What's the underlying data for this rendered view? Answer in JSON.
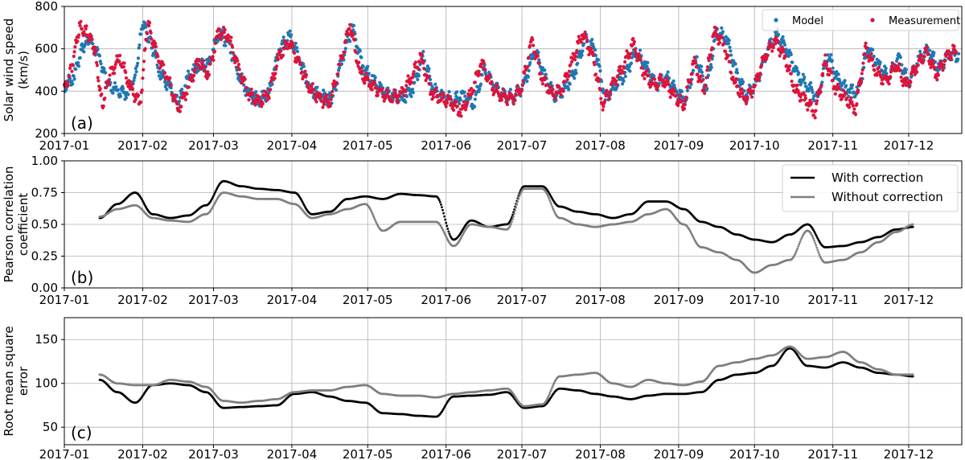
{
  "chart_data": [
    {
      "panel": "(a)",
      "type": "scatter",
      "ylabel": "Solar wind speed\n(km/s)",
      "ylim": [
        200,
        800
      ],
      "yticks": [
        200,
        400,
        600,
        800
      ],
      "xlim": [
        "2017-01-01",
        "2017-12-22"
      ],
      "xticks": [
        "2017-01",
        "2017-02",
        "2017-03",
        "2017-04",
        "2017-05",
        "2017-06",
        "2017-07",
        "2017-08",
        "2017-09",
        "2017-10",
        "2017-11",
        "2017-12"
      ],
      "grid": true,
      "legend": {
        "placement": "top-right",
        "entries": [
          "Model",
          "Measurement"
        ]
      },
      "series": [
        {
          "name": "Model",
          "color": "#1f77b4",
          "x": [
            "2017-01-01",
            "2017-01-05",
            "2017-01-08",
            "2017-01-11",
            "2017-01-15",
            "2017-01-18",
            "2017-01-22",
            "2017-01-26",
            "2017-01-29",
            "2017-02-01",
            "2017-02-04",
            "2017-02-08",
            "2017-02-12",
            "2017-02-15",
            "2017-02-19",
            "2017-02-23",
            "2017-02-27",
            "2017-03-03",
            "2017-03-07",
            "2017-03-11",
            "2017-03-15",
            "2017-03-19",
            "2017-03-23",
            "2017-03-27",
            "2017-03-31",
            "2017-04-04",
            "2017-04-08",
            "2017-04-12",
            "2017-04-17",
            "2017-04-21",
            "2017-04-25",
            "2017-04-29",
            "2017-05-03",
            "2017-05-07",
            "2017-05-11",
            "2017-05-15",
            "2017-05-19",
            "2017-05-23",
            "2017-05-27",
            "2017-05-31",
            "2017-06-04",
            "2017-06-08",
            "2017-06-12",
            "2017-06-16",
            "2017-06-20",
            "2017-06-24",
            "2017-06-28",
            "2017-07-02",
            "2017-07-06",
            "2017-07-10",
            "2017-07-14",
            "2017-07-18",
            "2017-07-22",
            "2017-07-26",
            "2017-07-30",
            "2017-08-03",
            "2017-08-07",
            "2017-08-11",
            "2017-08-15",
            "2017-08-19",
            "2017-08-23",
            "2017-08-27",
            "2017-08-31",
            "2017-09-04",
            "2017-09-08",
            "2017-09-12",
            "2017-09-16",
            "2017-09-20",
            "2017-09-24",
            "2017-09-28",
            "2017-10-02",
            "2017-10-06",
            "2017-10-10",
            "2017-10-14",
            "2017-10-18",
            "2017-10-22",
            "2017-10-26",
            "2017-10-30",
            "2017-11-03",
            "2017-11-07",
            "2017-11-11",
            "2017-11-15",
            "2017-11-19",
            "2017-11-23",
            "2017-11-27",
            "2017-12-01",
            "2017-12-05",
            "2017-12-09",
            "2017-12-13",
            "2017-12-17",
            "2017-12-21"
          ],
          "values": [
            420,
            470,
            610,
            640,
            560,
            430,
            400,
            390,
            470,
            720,
            640,
            480,
            410,
            340,
            460,
            530,
            520,
            680,
            620,
            480,
            380,
            360,
            390,
            600,
            660,
            560,
            410,
            380,
            360,
            560,
            700,
            520,
            450,
            400,
            380,
            360,
            420,
            560,
            410,
            370,
            360,
            380,
            340,
            500,
            430,
            370,
            380,
            430,
            600,
            470,
            380,
            400,
            500,
            640,
            600,
            360,
            430,
            480,
            590,
            520,
            430,
            470,
            400,
            360,
            560,
            410,
            680,
            650,
            480,
            380,
            440,
            600,
            660,
            600,
            470,
            430,
            360,
            580,
            450,
            410,
            390,
            610,
            520,
            470,
            560,
            440,
            550,
            600,
            500,
            580,
            560
          ]
        },
        {
          "name": "Measurement",
          "color": "#dc143c",
          "x": [
            "2017-01-01",
            "2017-01-04",
            "2017-01-07",
            "2017-01-10",
            "2017-01-13",
            "2017-01-16",
            "2017-01-19",
            "2017-01-23",
            "2017-01-27",
            "2017-01-31",
            "2017-02-03",
            "2017-02-07",
            "2017-02-11",
            "2017-02-15",
            "2017-02-19",
            "2017-02-23",
            "2017-02-27",
            "2017-03-03",
            "2017-03-07",
            "2017-03-11",
            "2017-03-15",
            "2017-03-19",
            "2017-03-23",
            "2017-03-27",
            "2017-03-31",
            "2017-04-04",
            "2017-04-08",
            "2017-04-12",
            "2017-04-16",
            "2017-04-20",
            "2017-04-24",
            "2017-04-28",
            "2017-05-02",
            "2017-05-06",
            "2017-05-10",
            "2017-05-14",
            "2017-05-18",
            "2017-05-22",
            "2017-05-26",
            "2017-05-30",
            "2017-06-03",
            "2017-06-07",
            "2017-06-11",
            "2017-06-15",
            "2017-06-19",
            "2017-06-23",
            "2017-06-27",
            "2017-07-01",
            "2017-07-05",
            "2017-07-09",
            "2017-07-13",
            "2017-07-17",
            "2017-07-21",
            "2017-07-25",
            "2017-07-29",
            "2017-08-02",
            "2017-08-06",
            "2017-08-10",
            "2017-08-14",
            "2017-08-18",
            "2017-08-22",
            "2017-08-26",
            "2017-08-30",
            "2017-09-03",
            "2017-09-07",
            "2017-09-11",
            "2017-09-15",
            "2017-09-19",
            "2017-09-23",
            "2017-09-27",
            "2017-10-01",
            "2017-10-05",
            "2017-10-09",
            "2017-10-13",
            "2017-10-17",
            "2017-10-21",
            "2017-10-25",
            "2017-10-29",
            "2017-11-02",
            "2017-11-06",
            "2017-11-10",
            "2017-11-14",
            "2017-11-18",
            "2017-11-22",
            "2017-11-26",
            "2017-11-30",
            "2017-12-04",
            "2017-12-08",
            "2017-12-12",
            "2017-12-16",
            "2017-12-20"
          ],
          "values": [
            400,
            520,
            700,
            680,
            600,
            330,
            480,
            560,
            420,
            340,
            720,
            560,
            460,
            310,
            420,
            540,
            480,
            680,
            660,
            500,
            390,
            340,
            400,
            560,
            640,
            520,
            420,
            360,
            350,
            520,
            720,
            480,
            440,
            390,
            370,
            380,
            460,
            560,
            400,
            360,
            350,
            300,
            390,
            540,
            420,
            380,
            360,
            420,
            640,
            460,
            380,
            420,
            540,
            680,
            560,
            340,
            430,
            520,
            620,
            500,
            420,
            460,
            380,
            330,
            540,
            400,
            680,
            620,
            440,
            360,
            420,
            560,
            640,
            560,
            410,
            360,
            300,
            540,
            420,
            360,
            320,
            600,
            500,
            440,
            530,
            420,
            520,
            580,
            480,
            560,
            600
          ]
        }
      ]
    },
    {
      "panel": "(b)",
      "type": "line",
      "ylabel": "Pearson correlation\ncoefficient",
      "ylim": [
        0.0,
        1.0
      ],
      "yticks": [
        "0.00",
        "0.25",
        "0.50",
        "0.75",
        "1.00"
      ],
      "xlim": [
        "2017-01-01",
        "2017-12-22"
      ],
      "xticks": [
        "2017-01",
        "2017-02",
        "2017-03",
        "2017-04",
        "2017-05",
        "2017-06",
        "2017-07",
        "2017-08",
        "2017-09",
        "2017-10",
        "2017-11",
        "2017-12"
      ],
      "grid": true,
      "legend": {
        "placement": "top-right",
        "entries": [
          "With correction",
          "Without correction"
        ]
      },
      "x": [
        "2017-01-15",
        "2017-01-22",
        "2017-01-29",
        "2017-02-05",
        "2017-02-12",
        "2017-02-19",
        "2017-02-26",
        "2017-03-05",
        "2017-03-12",
        "2017-03-19",
        "2017-03-26",
        "2017-04-02",
        "2017-04-09",
        "2017-04-16",
        "2017-04-23",
        "2017-04-30",
        "2017-05-07",
        "2017-05-14",
        "2017-05-21",
        "2017-05-28",
        "2017-06-04",
        "2017-06-11",
        "2017-06-18",
        "2017-06-25",
        "2017-07-02",
        "2017-07-09",
        "2017-07-16",
        "2017-07-23",
        "2017-07-30",
        "2017-08-06",
        "2017-08-13",
        "2017-08-20",
        "2017-08-27",
        "2017-09-03",
        "2017-09-10",
        "2017-09-17",
        "2017-09-24",
        "2017-10-01",
        "2017-10-08",
        "2017-10-15",
        "2017-10-22",
        "2017-10-29",
        "2017-11-05",
        "2017-11-12",
        "2017-11-19",
        "2017-11-26",
        "2017-12-03"
      ],
      "series": [
        {
          "name": "With correction",
          "color": "#000000",
          "values": [
            0.55,
            0.66,
            0.75,
            0.58,
            0.55,
            0.57,
            0.65,
            0.84,
            0.8,
            0.78,
            0.77,
            0.75,
            0.58,
            0.6,
            0.7,
            0.72,
            0.7,
            0.74,
            0.73,
            0.72,
            0.38,
            0.53,
            0.48,
            0.5,
            0.8,
            0.8,
            0.64,
            0.6,
            0.58,
            0.55,
            0.58,
            0.68,
            0.68,
            0.62,
            0.52,
            0.48,
            0.42,
            0.38,
            0.36,
            0.42,
            0.5,
            0.32,
            0.33,
            0.36,
            0.4,
            0.46,
            0.48
          ]
        },
        {
          "name": "Without correction",
          "color": "#7f7f7f",
          "values": [
            0.56,
            0.62,
            0.65,
            0.55,
            0.53,
            0.52,
            0.58,
            0.75,
            0.72,
            0.7,
            0.7,
            0.66,
            0.55,
            0.58,
            0.62,
            0.66,
            0.45,
            0.52,
            0.52,
            0.52,
            0.33,
            0.5,
            0.48,
            0.46,
            0.78,
            0.78,
            0.55,
            0.5,
            0.48,
            0.5,
            0.52,
            0.58,
            0.62,
            0.5,
            0.32,
            0.28,
            0.22,
            0.12,
            0.18,
            0.22,
            0.45,
            0.2,
            0.22,
            0.28,
            0.36,
            0.44,
            0.5
          ]
        }
      ]
    },
    {
      "panel": "(c)",
      "type": "line",
      "ylabel": "Root mean square\nerror",
      "ylim": [
        30,
        175
      ],
      "yticks": [
        50,
        100,
        150
      ],
      "xlim": [
        "2017-01-01",
        "2017-12-22"
      ],
      "xticks": [
        "2017-01",
        "2017-02",
        "2017-03",
        "2017-04",
        "2017-05",
        "2017-06",
        "2017-07",
        "2017-08",
        "2017-09",
        "2017-10",
        "2017-11",
        "2017-12"
      ],
      "grid": true,
      "x": [
        "2017-01-15",
        "2017-01-22",
        "2017-01-29",
        "2017-02-05",
        "2017-02-12",
        "2017-02-19",
        "2017-02-26",
        "2017-03-05",
        "2017-03-12",
        "2017-03-19",
        "2017-03-26",
        "2017-04-02",
        "2017-04-09",
        "2017-04-16",
        "2017-04-23",
        "2017-04-30",
        "2017-05-07",
        "2017-05-14",
        "2017-05-21",
        "2017-05-28",
        "2017-06-04",
        "2017-06-11",
        "2017-06-18",
        "2017-06-25",
        "2017-07-02",
        "2017-07-09",
        "2017-07-16",
        "2017-07-23",
        "2017-07-30",
        "2017-08-06",
        "2017-08-13",
        "2017-08-20",
        "2017-08-27",
        "2017-09-03",
        "2017-09-10",
        "2017-09-17",
        "2017-09-24",
        "2017-10-01",
        "2017-10-08",
        "2017-10-15",
        "2017-10-22",
        "2017-10-29",
        "2017-11-05",
        "2017-11-12",
        "2017-11-19",
        "2017-11-26",
        "2017-12-03"
      ],
      "series": [
        {
          "name": "With correction",
          "color": "#000000",
          "values": [
            104,
            90,
            78,
            98,
            100,
            98,
            90,
            72,
            73,
            74,
            75,
            88,
            90,
            85,
            80,
            78,
            66,
            65,
            63,
            62,
            85,
            86,
            87,
            90,
            72,
            74,
            94,
            92,
            88,
            85,
            82,
            86,
            88,
            88,
            90,
            104,
            110,
            112,
            120,
            140,
            120,
            118,
            124,
            118,
            112,
            110,
            108
          ]
        },
        {
          "name": "Without correction",
          "color": "#7f7f7f",
          "values": [
            110,
            100,
            98,
            98,
            104,
            102,
            96,
            80,
            78,
            80,
            82,
            90,
            92,
            92,
            96,
            98,
            88,
            86,
            86,
            84,
            88,
            90,
            92,
            94,
            74,
            76,
            108,
            110,
            112,
            100,
            96,
            104,
            100,
            98,
            102,
            120,
            124,
            128,
            132,
            142,
            128,
            130,
            136,
            124,
            116,
            110,
            110
          ]
        }
      ]
    }
  ]
}
